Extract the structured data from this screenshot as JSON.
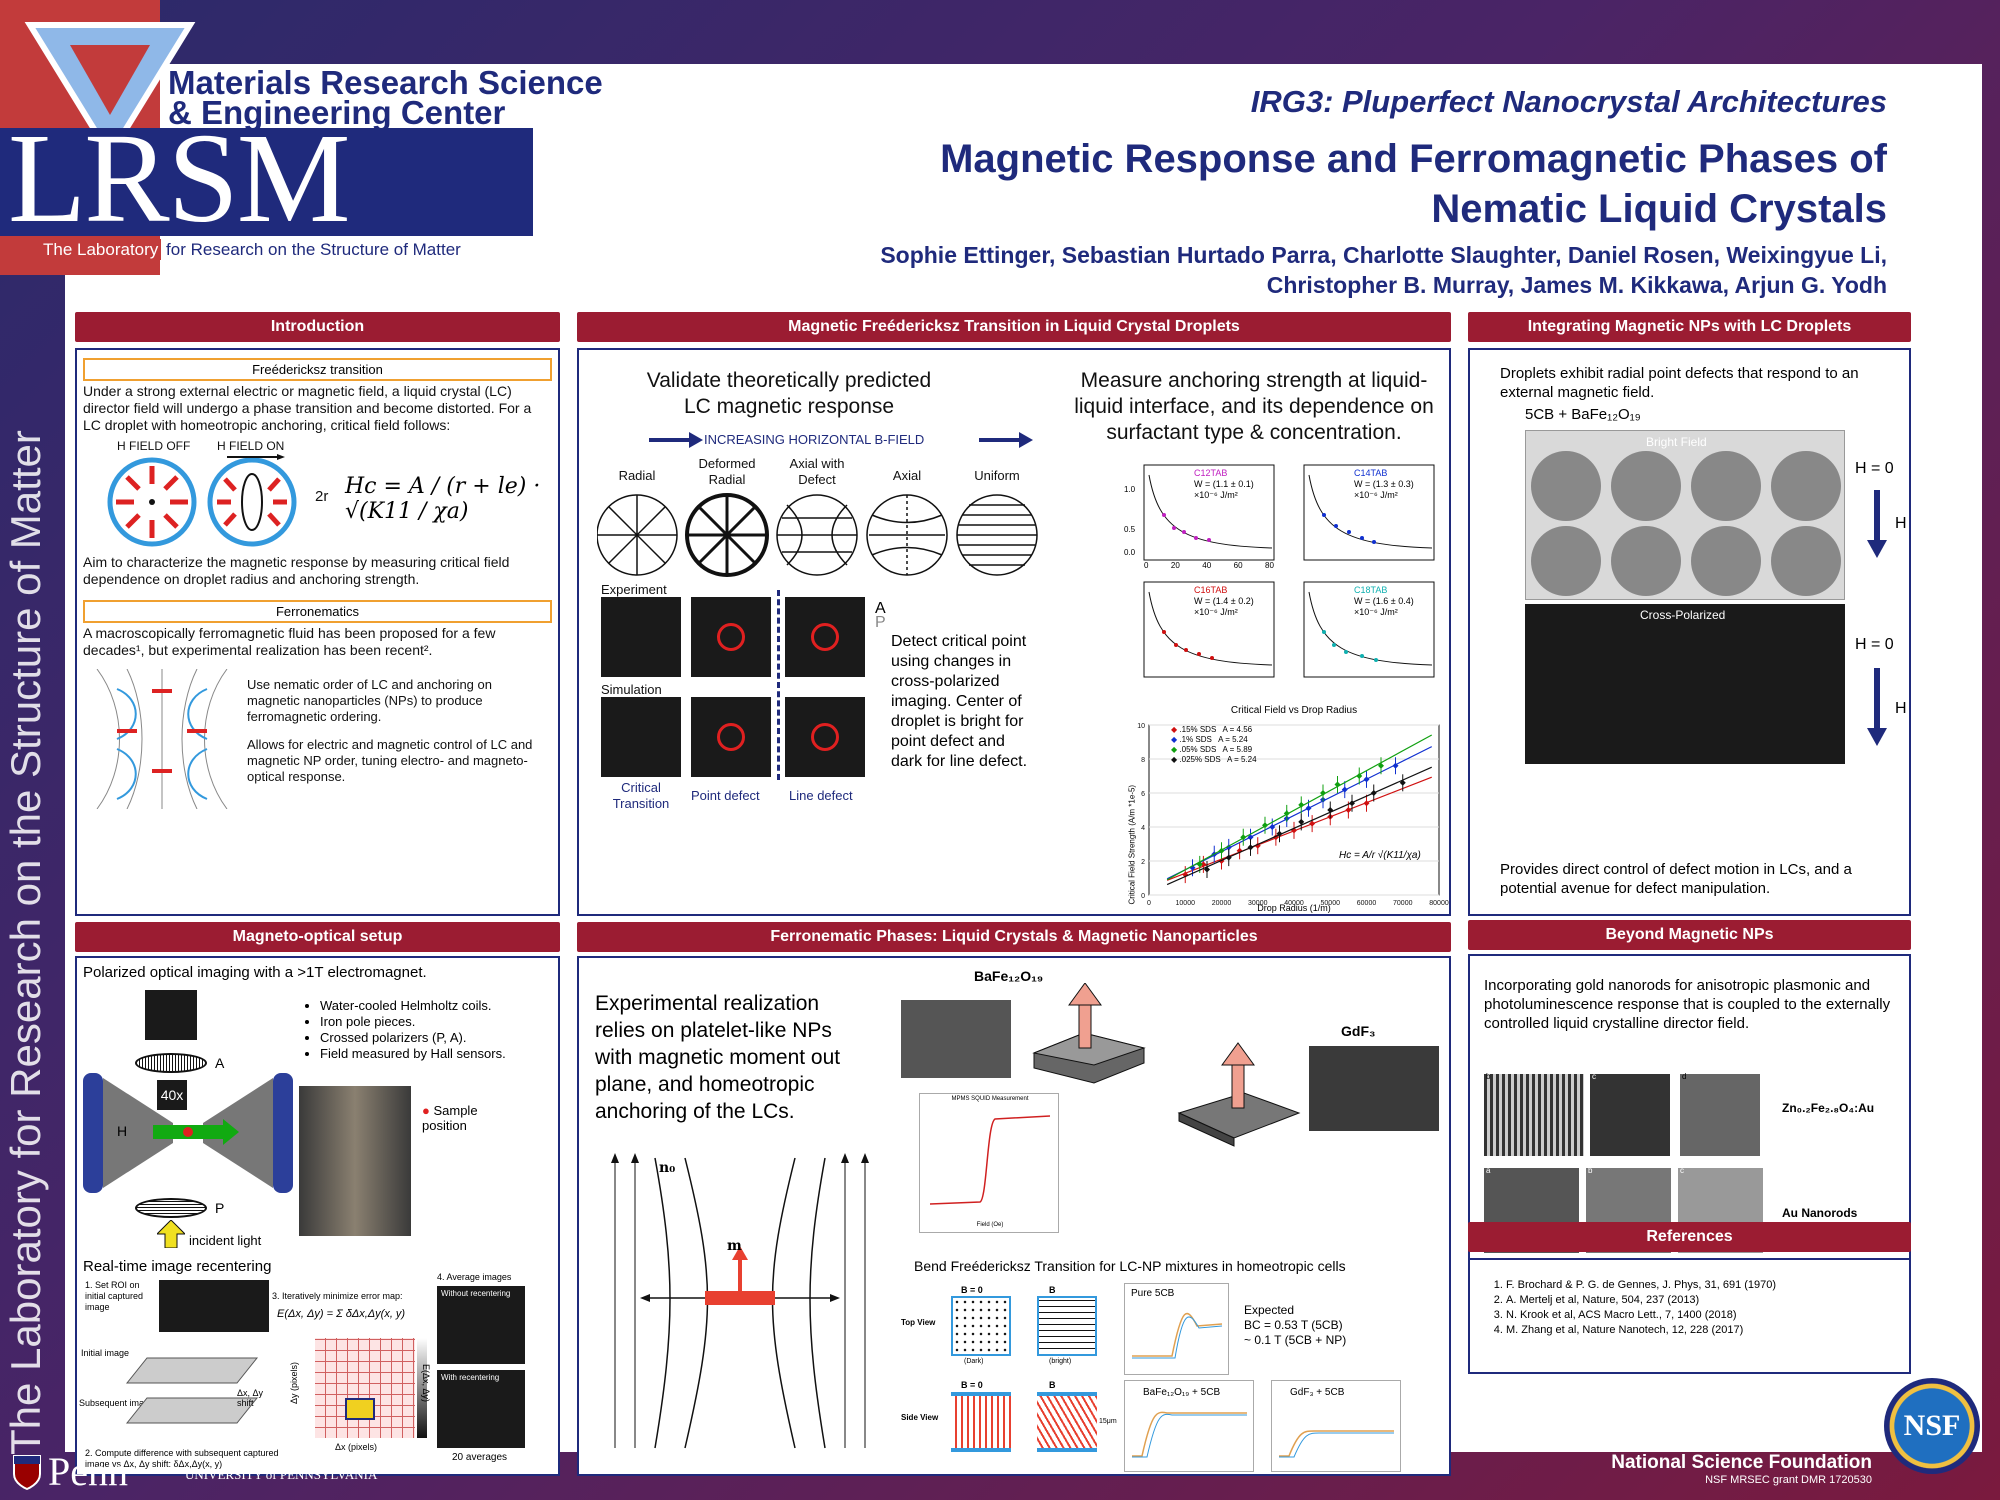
{
  "logo": {
    "mrsec_line1": "Materials Research Science",
    "mrsec_line2": "& Engineering Center",
    "lrsm": "LRSM",
    "lab_prefix": "The Laboratory",
    "lab_suffix": " for Research on the Structure of Matter",
    "vertical": "The Laboratory for Research on the Structure of Matter"
  },
  "header": {
    "irg": "IRG3: Pluperfect Nanocrystal Architectures",
    "title_line1": "Magnetic Response and Ferromagnetic Phases of",
    "title_line2": "Nematic Liquid Crystals",
    "authors_line1": "Sophie Ettinger, Sebastian Hurtado Parra, Charlotte Slaughter, Daniel Rosen, Weixingyue Li,",
    "authors_line2": "Christopher B. Murray, James M. Kikkawa, Arjun G. Yodh"
  },
  "intro": {
    "heading": "Introduction",
    "fred_label": "Freédericksz transition",
    "fred_text": "Under a strong external electric or magnetic field, a liquid crystal (LC) director field will undergo a phase transition and become distorted. For a LC droplet with homeotropic anchoring, critical field follows:",
    "h_off": "H FIELD OFF",
    "h_on": "H FIELD ON",
    "two_r": "2r",
    "formula": "Hc = A / (r + le) · √(K11 / χa)",
    "aim_text": "Aim to characterize the magnetic response by measuring critical field dependence on droplet radius and anchoring strength.",
    "ferro_label": "Ferronematics",
    "ferro_text": "A macroscopically ferromagnetic fluid has been proposed for a few decades¹, but experimental realization has been recent².",
    "ferro_p1": "Use nematic order of LC and anchoring on magnetic nanoparticles (NPs) to produce ferromagnetic ordering.",
    "ferro_p2": "Allows for electric and magnetic control of LC and magnetic NP order, tuning electro- and magneto-optical response."
  },
  "fred_panel": {
    "heading": "Magnetic Freédericksz Transition in Liquid Crystal Droplets",
    "left_title": "Validate theoretically predicted LC magnetic response",
    "right_title": "Measure anchoring strength at liquid-liquid interface, and its dependence on surfactant type & concentration.",
    "arrow_label": "INCREASING HORIZONTAL B-FIELD",
    "cols": [
      "Radial",
      "Deformed Radial",
      "Axial with Defect",
      "Axial",
      "Uniform"
    ],
    "row_experiment": "Experiment",
    "row_simulation": "Simulation",
    "a_label": "A",
    "p_label": "P",
    "crit": "Critical Transition",
    "point_defect": "Point defect",
    "line_defect": "Line defect",
    "detect_text": "Detect critical point using changes in cross-polarized imaging. Center of droplet is bright for point defect and dark for line defect.",
    "insets": [
      {
        "name": "C12TAB",
        "w": "W = (1.1 ± 0.1)",
        "unit": "×10⁻⁶ J/m²",
        "color": "#c020c0"
      },
      {
        "name": "C14TAB",
        "w": "W = (1.3 ± 0.3)",
        "unit": "×10⁻⁶ J/m²",
        "color": "#1030d0"
      },
      {
        "name": "C16TAB",
        "w": "W = (1.4 ± 0.2)",
        "unit": "×10⁻⁶ J/m²",
        "color": "#d01010"
      },
      {
        "name": "C18TAB",
        "w": "W = (1.6 ± 0.4)",
        "unit": "×10⁻⁶ J/m²",
        "color": "#10b0b0"
      }
    ],
    "inset_yticks": [
      "1.0",
      "0.5",
      "0.0"
    ],
    "inset_xticks": [
      "0",
      "20",
      "40",
      "60",
      "80"
    ]
  },
  "chart_data": {
    "type": "scatter",
    "title": "Critical Field vs Drop Radius",
    "xlabel": "Drop Radius (1/m)",
    "ylabel": "Critical Field Strength (A/m *1e-5)",
    "xlim": [
      0,
      80000
    ],
    "ylim": [
      0,
      10
    ],
    "xticks": [
      0,
      10000,
      20000,
      30000,
      40000,
      50000,
      60000,
      70000,
      80000
    ],
    "yticks": [
      0,
      2,
      4,
      6,
      8,
      10
    ],
    "annotation": "Hc = A/r √(K11/χa)",
    "legend_position": "top-left",
    "series": [
      {
        "name": ".15% SDS",
        "a": "A = 4.56",
        "color": "#d01010",
        "x": [
          10000,
          15000,
          20000,
          25000,
          30000,
          35000,
          40000,
          45000,
          50000,
          55000,
          60000
        ],
        "y": [
          1.2,
          1.8,
          2.0,
          2.6,
          2.9,
          3.4,
          3.8,
          4.2,
          4.6,
          5.0,
          5.4
        ]
      },
      {
        "name": ".1% SDS",
        "a": "A = 5.24",
        "color": "#1030d0",
        "x": [
          12000,
          18000,
          22000,
          28000,
          34000,
          38000,
          44000,
          48000,
          54000,
          60000,
          68000
        ],
        "y": [
          1.6,
          2.4,
          2.8,
          3.4,
          4.0,
          4.5,
          5.1,
          5.6,
          6.2,
          6.8,
          7.6
        ]
      },
      {
        "name": ".05% SDS",
        "a": "A = 5.89",
        "color": "#10a010",
        "x": [
          14000,
          20000,
          26000,
          32000,
          38000,
          42000,
          48000,
          52000,
          58000,
          64000
        ],
        "y": [
          1.8,
          2.6,
          3.4,
          4.1,
          4.8,
          5.3,
          6.0,
          6.5,
          7.0,
          7.6
        ]
      },
      {
        "name": ".025% SDS",
        "a": "A = 5.24",
        "color": "#111111",
        "x": [
          16000,
          22000,
          28000,
          36000,
          42000,
          50000,
          56000,
          62000,
          70000
        ],
        "y": [
          1.5,
          2.2,
          2.8,
          3.6,
          4.3,
          5.0,
          5.4,
          6.0,
          6.6
        ]
      }
    ]
  },
  "integrating": {
    "heading": "Integrating Magnetic NPs with LC Droplets",
    "text1": "Droplets exhibit radial point defects that respond to an external magnetic field.",
    "compound": "5CB + BaFe₁₂O₁₉",
    "bright": "Bright Field",
    "cross": "Cross-Polarized",
    "h0a": "H = 0",
    "h1": "H",
    "h0b": "H = 0",
    "h2": "H",
    "text2": "Provides direct control of defect motion in LCs, and a potential avenue for defect manipulation."
  },
  "setup": {
    "heading": "Magneto-optical setup",
    "intro": "Polarized optical imaging with a >1T electromagnet.",
    "bullets": [
      "Water-cooled Helmholtz coils.",
      "Iron pole pieces.",
      "Crossed polarizers (P, A).",
      "Field measured by Hall sensors."
    ],
    "a": "A",
    "p": "P",
    "h": "H",
    "obj": "40x",
    "incident": "incident light",
    "sample": "Sample position",
    "recenter_title": "Real-time image recentering",
    "step1": "1. Set ROI on initial captured image",
    "step2": "2. Compute difference with subsequent captured image vs Δx, Δy shift: δΔx,Δy(x, y)",
    "step3": "3. Iteratively minimize error map:",
    "step3_eq": "E(Δx, Δy) = Σ δΔx,Δy(x, y)",
    "step4": "4. Average images",
    "initial": "Initial image",
    "subsequent": "Subsequent image",
    "shift": "Δx, Δy shift",
    "without": "Without recentering",
    "with": "With recentering",
    "avg": "20 averages",
    "dx": "Δx (pixels)",
    "dy": "Δy (pixels)",
    "emap": "E(Δx, Δy)"
  },
  "ferro": {
    "heading": "Ferronematic Phases: Liquid Crystals & Magnetic Nanoparticles",
    "text": "Experimental realization relies on platelet-like NPs with magnetic moment out plane, and homeotropic anchoring of the LCs.",
    "bafe": "BaFe₁₂O₁₉",
    "gdf": "GdF₃",
    "n0": "n₀",
    "m": "m",
    "squid": "MPMS SQUID Measurement",
    "squid_x": "Field (Oe)",
    "bend_title": "Bend Freédericksz Transition for LC-NP mixtures in homeotropic cells",
    "top_view": "Top View",
    "side_view": "Side View",
    "b0": "B = 0",
    "b": "B",
    "dark": "(Dark)",
    "bright": "(bright)",
    "pure": "Pure 5CB",
    "expected": "Expected",
    "bc1": "BC = 0.53 T (5CB)",
    "bc2": "~ 0.1 T (5CB + NP)",
    "bafe_cb": "BaFe₁₂O₁₉ + 5CB",
    "gdf_cb": "GdF₃ + 5CB",
    "thick": "15μm"
  },
  "beyond": {
    "heading": "Beyond Magnetic NPs",
    "text": "Incorporating gold nanorods for anisotropic plasmonic and photoluminescence response that is coupled to the externally controlled liquid crystalline director field.",
    "zn": "Zn₀.₂Fe₂.₈O₄:Au",
    "au": "Au Nanorods",
    "lb": "b",
    "lc": "c",
    "ld": "d",
    "la": "a",
    "lb2": "b",
    "lc2": "c"
  },
  "refs": {
    "heading": "References",
    "items": [
      "F. Brochard & P. G. de Gennes, J. Phys, 31, 691 (1970)",
      "A. Mertelj et al, Nature, 504, 237 (2013)",
      "N. Krook et al, ACS Macro Lett., 7, 1400 (2018)",
      "M. Zhang et al, Nature Nanotech, 12, 228 (2017)"
    ]
  },
  "footer": {
    "penn": "Penn",
    "upenn": "UNIVERSITY of PENNSYLVANIA",
    "nsf": "National Science Foundation",
    "grant": "NSF MRSEC grant DMR 1720530",
    "nsf_logo": "NSF"
  }
}
